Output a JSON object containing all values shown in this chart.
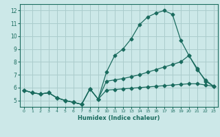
{
  "xlabel": "Humidex (Indice chaleur)",
  "bg_color": "#cce8e8",
  "grid_color": "#aacccc",
  "line_color": "#1a6b5e",
  "x_range": [
    -0.5,
    23.5
  ],
  "y_range": [
    4.5,
    12.5
  ],
  "yticks": [
    5,
    6,
    7,
    8,
    9,
    10,
    11,
    12
  ],
  "xticks": [
    0,
    1,
    2,
    3,
    4,
    5,
    6,
    7,
    8,
    9,
    10,
    11,
    12,
    13,
    14,
    15,
    16,
    17,
    18,
    19,
    20,
    21,
    22,
    23
  ],
  "series1_x": [
    0,
    1,
    2,
    3,
    4,
    5,
    6,
    7,
    8,
    9,
    10,
    11,
    12,
    13,
    14,
    15,
    16,
    17,
    18,
    19,
    20,
    21,
    22,
    23
  ],
  "series1_y": [
    5.8,
    5.6,
    5.5,
    5.6,
    5.2,
    5.0,
    4.85,
    4.7,
    5.9,
    5.1,
    7.2,
    8.5,
    9.0,
    9.8,
    10.9,
    11.5,
    11.8,
    12.0,
    11.7,
    9.7,
    8.5,
    7.4,
    6.6,
    6.1
  ],
  "series2_x": [
    0,
    1,
    2,
    3,
    4,
    5,
    6,
    7,
    8,
    9,
    10,
    11,
    12,
    13,
    14,
    15,
    16,
    17,
    18,
    19,
    20,
    21,
    22,
    23
  ],
  "series2_y": [
    5.8,
    5.6,
    5.5,
    5.6,
    5.2,
    5.0,
    4.85,
    4.7,
    5.9,
    5.1,
    6.5,
    6.6,
    6.7,
    6.85,
    7.0,
    7.2,
    7.4,
    7.6,
    7.8,
    8.0,
    8.5,
    7.5,
    6.5,
    6.1
  ],
  "series3_x": [
    0,
    1,
    2,
    3,
    4,
    5,
    6,
    7,
    8,
    9,
    10,
    11,
    12,
    13,
    14,
    15,
    16,
    17,
    18,
    19,
    20,
    21,
    22,
    23
  ],
  "series3_y": [
    5.8,
    5.6,
    5.5,
    5.6,
    5.2,
    5.0,
    4.85,
    4.7,
    5.9,
    5.1,
    5.8,
    5.85,
    5.9,
    5.95,
    6.0,
    6.05,
    6.1,
    6.15,
    6.2,
    6.25,
    6.3,
    6.3,
    6.2,
    6.1
  ]
}
